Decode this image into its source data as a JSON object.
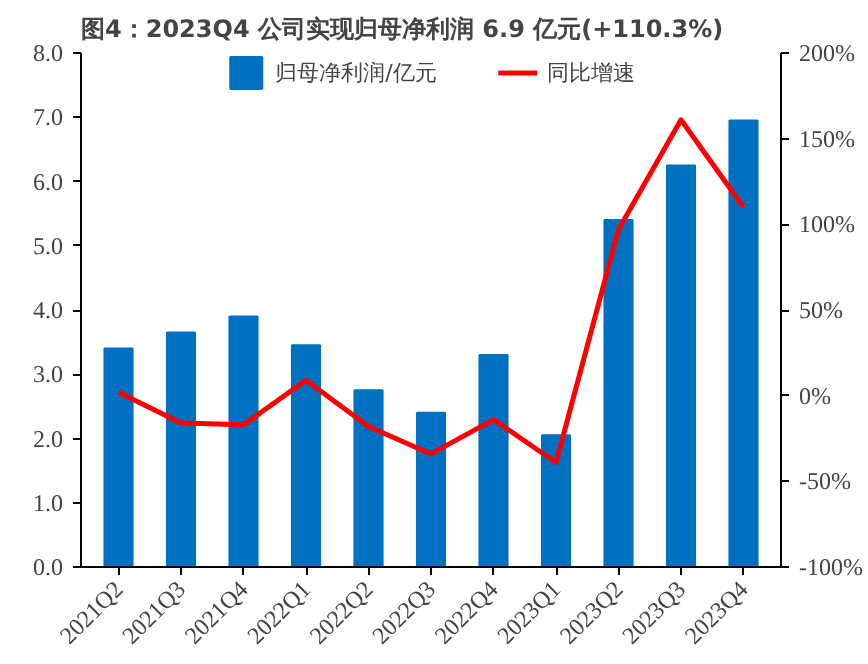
{
  "chart_data": {
    "type": "bar",
    "title": "图4：2023Q4 公司实现归母净利润 6.9 亿元(+110.3%)",
    "categories": [
      "2021Q2",
      "2021Q3",
      "2021Q4",
      "2022Q1",
      "2022Q2",
      "2022Q3",
      "2022Q4",
      "2023Q1",
      "2023Q2",
      "2023Q3",
      "2023Q4"
    ],
    "series": [
      {
        "name": "归母净利润/亿元",
        "color": "#0070c0",
        "values": [
          3.4,
          3.65,
          3.9,
          3.45,
          2.75,
          2.4,
          3.3,
          2.05,
          5.4,
          6.25,
          6.95
        ]
      },
      {
        "name": "同比增速",
        "color": "#ff0000",
        "type": "line",
        "axis": "y2",
        "values": [
          2,
          -16,
          -17,
          9,
          -18,
          -34,
          -14,
          -39,
          97,
          161,
          110
        ]
      }
    ],
    "ylim": [
      0,
      8
    ],
    "yticks": [
      {
        "value": 0,
        "label": "0.0"
      },
      {
        "value": 1,
        "label": "1.0"
      },
      {
        "value": 2,
        "label": "2.0"
      },
      {
        "value": 3,
        "label": "3.0"
      },
      {
        "value": 4,
        "label": "4.0"
      },
      {
        "value": 5,
        "label": "5.0"
      },
      {
        "value": 6,
        "label": "6.0"
      },
      {
        "value": 7,
        "label": "7.0"
      },
      {
        "value": 8,
        "label": "8.0"
      }
    ],
    "y2lim": [
      -100,
      200
    ],
    "y2ticks": [
      {
        "value": -100,
        "label": "-100%"
      },
      {
        "value": -50,
        "label": "-50%"
      },
      {
        "value": 0,
        "label": "0%"
      },
      {
        "value": 50,
        "label": "50%"
      },
      {
        "value": 100,
        "label": "100%"
      },
      {
        "value": 150,
        "label": "150%"
      },
      {
        "value": 200,
        "label": "200%"
      }
    ],
    "grid": false,
    "legend": "top"
  }
}
